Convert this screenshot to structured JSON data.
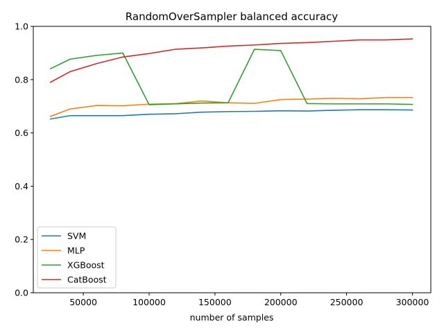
{
  "chart_data": {
    "type": "line",
    "title": "RandomOverSampler balanced accuracy",
    "xlabel": "number of samples",
    "ylabel": "",
    "xlim": [
      12000,
      314000
    ],
    "ylim": [
      0,
      1
    ],
    "xticks": [
      50000,
      100000,
      150000,
      200000,
      250000,
      300000
    ],
    "yticks": [
      0.0,
      0.2,
      0.4,
      0.6,
      0.8,
      1.0
    ],
    "xtick_labels": [
      "50000",
      "100000",
      "150000",
      "200000",
      "250000",
      "300000"
    ],
    "ytick_labels": [
      "0.0",
      "0.2",
      "0.4",
      "0.6",
      "0.8",
      "1.0"
    ],
    "legend_position": "lower-left",
    "grid": false,
    "x": [
      25000,
      40000,
      60000,
      80000,
      100000,
      120000,
      140000,
      160000,
      180000,
      200000,
      220000,
      240000,
      260000,
      280000,
      300000
    ],
    "series": [
      {
        "name": "SVM",
        "color": "#1f77b4",
        "values": [
          0.652,
          0.665,
          0.665,
          0.665,
          0.67,
          0.672,
          0.678,
          0.68,
          0.681,
          0.683,
          0.682,
          0.685,
          0.687,
          0.687,
          0.686
        ]
      },
      {
        "name": "MLP",
        "color": "#ff7f0e",
        "values": [
          0.662,
          0.69,
          0.703,
          0.702,
          0.708,
          0.71,
          0.72,
          0.713,
          0.711,
          0.725,
          0.727,
          0.73,
          0.728,
          0.733,
          0.733
        ]
      },
      {
        "name": "XGBoost",
        "color": "#2ca02c",
        "values": [
          0.841,
          0.877,
          0.891,
          0.9,
          0.706,
          0.709,
          0.712,
          0.713,
          0.914,
          0.909,
          0.71,
          0.709,
          0.709,
          0.709,
          0.707
        ]
      },
      {
        "name": "CatBoost",
        "color": "#d62728",
        "values": [
          0.79,
          0.83,
          0.86,
          0.885,
          0.898,
          0.914,
          0.919,
          0.926,
          0.93,
          0.936,
          0.939,
          0.944,
          0.949,
          0.949,
          0.953
        ]
      }
    ]
  }
}
